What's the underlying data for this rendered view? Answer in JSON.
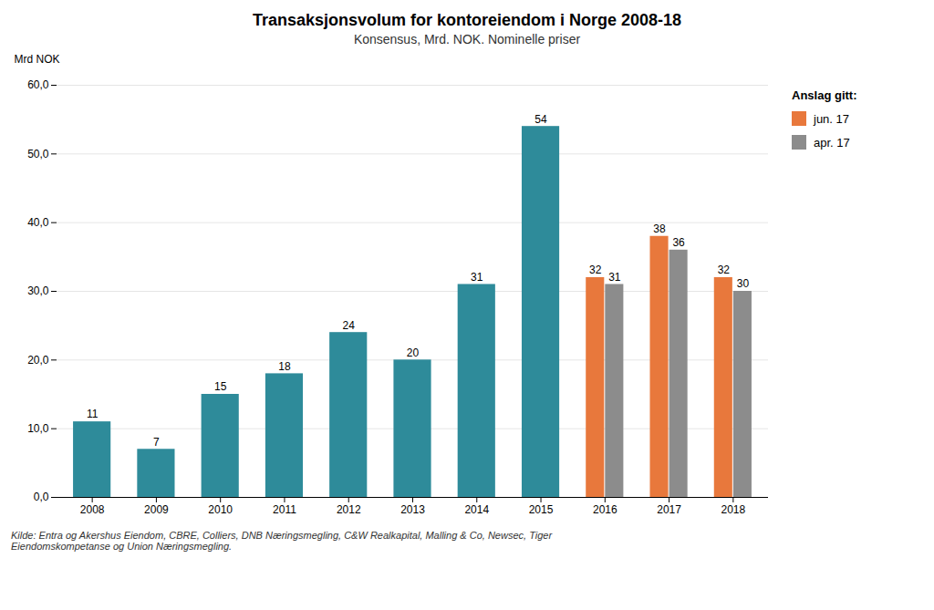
{
  "chart_data": {
    "type": "bar",
    "title": "Transaksjonsvolum for kontoreiendom i Norge 2008-18",
    "subtitle": "Konsensus, Mrd. NOK. Nominelle priser",
    "y_label": "Mrd NOK",
    "caption": "Kilde: Entra og Akershus Eiendom, CBRE, Colliers, DNB Næringsmegling, C&W Realkapital, Malling & Co, Newsec, Tiger\nEiendomskompetanse og Union Næringsmegling.",
    "categories": [
      "2008",
      "2009",
      "2010",
      "2011",
      "2012",
      "2013",
      "2014",
      "2015",
      "2016",
      "2017",
      "2018"
    ],
    "series": [
      {
        "color": "#2e8b9a",
        "values": [
          11,
          7,
          15,
          18,
          24,
          20,
          31,
          54,
          null,
          null,
          null
        ]
      },
      {
        "name": "jun. 17",
        "color": "#e8783c",
        "values": [
          null,
          null,
          null,
          null,
          null,
          null,
          null,
          null,
          32,
          38,
          32
        ]
      },
      {
        "name": "apr. 17",
        "color": "#8c8c8c",
        "values": [
          null,
          null,
          null,
          null,
          null,
          null,
          null,
          null,
          31,
          36,
          30
        ]
      }
    ],
    "legend_title": "Anslag gitt:",
    "ylim": [
      0,
      60
    ],
    "yticks": [
      {
        "value": 0,
        "label": "0,0"
      },
      {
        "value": 10,
        "label": "10,0"
      },
      {
        "value": 20,
        "label": "20,0"
      },
      {
        "value": 30,
        "label": "30,0"
      },
      {
        "value": 40,
        "label": "40,0"
      },
      {
        "value": 50,
        "label": "50,0"
      },
      {
        "value": 60,
        "label": "60,0"
      }
    ],
    "grid": true,
    "data_labels": true,
    "legend": "right"
  }
}
